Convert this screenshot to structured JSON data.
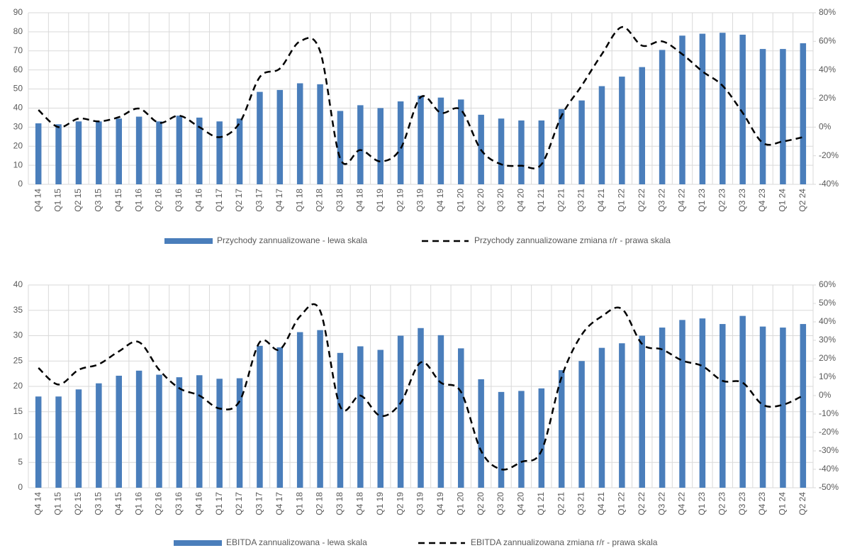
{
  "chart_data": [
    {
      "type": "combo",
      "categories": [
        "Q4 14",
        "Q1 15",
        "Q2 15",
        "Q3 15",
        "Q4 15",
        "Q1 16",
        "Q2 16",
        "Q3 16",
        "Q4 16",
        "Q1 17",
        "Q2 17",
        "Q3 17",
        "Q4 17",
        "Q1 18",
        "Q2 18",
        "Q3 18",
        "Q4 18",
        "Q1 19",
        "Q2 19",
        "Q3 19",
        "Q4 19",
        "Q1 20",
        "Q2 20",
        "Q3 20",
        "Q4 20",
        "Q1 21",
        "Q2 21",
        "Q3 21",
        "Q4 21",
        "Q1 22",
        "Q2 22",
        "Q3 22",
        "Q4 22",
        "Q1 23",
        "Q2 23",
        "Q3 23",
        "Q4 23",
        "Q1 24",
        "Q2 24"
      ],
      "series": [
        {
          "name": "Przychody zannualizowane - lewa skala",
          "type": "bar",
          "color": "#4a7ebb",
          "values": [
            32,
            31.5,
            33,
            33,
            34.5,
            35.5,
            33,
            36,
            35,
            33,
            34.5,
            48.5,
            49.5,
            53,
            52.5,
            38.5,
            41.5,
            40,
            43.5,
            46.5,
            45.5,
            44.5,
            36.5,
            34.5,
            33.5,
            33.5,
            39.5,
            44,
            51.5,
            56.5,
            61.5,
            70.5,
            78,
            79,
            79.5,
            78.5,
            71,
            71,
            74
          ]
        },
        {
          "name": "Przychody zannualizowane zmiana r/r - prawa skala",
          "type": "line",
          "axis": "y2",
          "color": "#000000",
          "line_style": "dashed",
          "values": [
            12,
            0,
            6,
            4,
            7,
            13,
            3,
            8,
            0,
            -7,
            3,
            35,
            41,
            60,
            53,
            -22,
            -16,
            -24,
            -15,
            21,
            10,
            12,
            -16,
            -26,
            -27,
            -26,
            8,
            29,
            51,
            70,
            57,
            60,
            51,
            39,
            29,
            10,
            -11,
            -10,
            -7
          ]
        }
      ],
      "ylim": [
        0,
        90
      ],
      "yticks": [
        0,
        10,
        20,
        30,
        40,
        50,
        60,
        70,
        80,
        90
      ],
      "y2lim": [
        -40,
        80
      ],
      "y2ticks": [
        {
          "value": -40,
          "label": "-40%"
        },
        {
          "value": -20,
          "label": "-20%"
        },
        {
          "value": 0,
          "label": "0%"
        },
        {
          "value": 20,
          "label": "20%"
        },
        {
          "value": 40,
          "label": "40%"
        },
        {
          "value": 60,
          "label": "60%"
        },
        {
          "value": 80,
          "label": "80%"
        }
      ],
      "grid": true,
      "legend": "bottom"
    },
    {
      "type": "combo",
      "categories": [
        "Q4 14",
        "Q1 15",
        "Q2 15",
        "Q3 15",
        "Q4 15",
        "Q1 16",
        "Q2 16",
        "Q3 16",
        "Q4 16",
        "Q1 17",
        "Q2 17",
        "Q3 17",
        "Q4 17",
        "Q1 18",
        "Q2 18",
        "Q3 18",
        "Q4 18",
        "Q1 19",
        "Q2 19",
        "Q3 19",
        "Q4 19",
        "Q1 20",
        "Q2 20",
        "Q3 20",
        "Q4 20",
        "Q1 21",
        "Q2 21",
        "Q3 21",
        "Q4 21",
        "Q1 22",
        "Q2 22",
        "Q3 22",
        "Q4 22",
        "Q1 23",
        "Q2 23",
        "Q3 23",
        "Q4 23",
        "Q1 24",
        "Q2 24"
      ],
      "series": [
        {
          "name": "EBITDA zannualizowana - lewa skala",
          "type": "bar",
          "color": "#4a7ebb",
          "values": [
            18,
            18,
            19.4,
            20.6,
            22.1,
            23.1,
            22.3,
            21.8,
            22.2,
            21.5,
            21.6,
            28,
            27.7,
            30.7,
            31.1,
            26.6,
            27.9,
            27.2,
            30,
            31.5,
            30.1,
            27.5,
            21.4,
            18.9,
            19.1,
            19.6,
            23.2,
            25,
            27.6,
            28.5,
            30,
            31.6,
            33.1,
            33.4,
            32.3,
            33.9,
            31.8,
            31.6,
            32.3
          ]
        },
        {
          "name": "EBITDA zannualizowana zmiana r/r - prawa skala",
          "type": "line",
          "axis": "y2",
          "color": "#000000",
          "line_style": "dashed",
          "values": [
            15,
            6,
            14,
            17,
            24,
            29,
            14,
            4,
            0,
            -7,
            -3,
            29,
            25,
            43,
            46,
            -6,
            0,
            -11,
            -4,
            18,
            7,
            2,
            -30,
            -40,
            -36,
            -30,
            10,
            33,
            43,
            47,
            28,
            25,
            19,
            16,
            8,
            7,
            -5,
            -5,
            0
          ]
        }
      ],
      "ylim": [
        0,
        40
      ],
      "yticks": [
        0,
        5,
        10,
        15,
        20,
        25,
        30,
        35,
        40
      ],
      "y2lim": [
        -50,
        60
      ],
      "y2ticks": [
        {
          "value": -50,
          "label": "-50%"
        },
        {
          "value": -40,
          "label": "-40%"
        },
        {
          "value": -30,
          "label": "-30%"
        },
        {
          "value": -20,
          "label": "-20%"
        },
        {
          "value": -10,
          "label": "-10%"
        },
        {
          "value": 0,
          "label": "0%"
        },
        {
          "value": 10,
          "label": "10%"
        },
        {
          "value": 20,
          "label": "20%"
        },
        {
          "value": 30,
          "label": "30%"
        },
        {
          "value": 40,
          "label": "40%"
        },
        {
          "value": 50,
          "label": "50%"
        },
        {
          "value": 60,
          "label": "60%"
        }
      ],
      "grid": true,
      "legend": "bottom"
    }
  ]
}
